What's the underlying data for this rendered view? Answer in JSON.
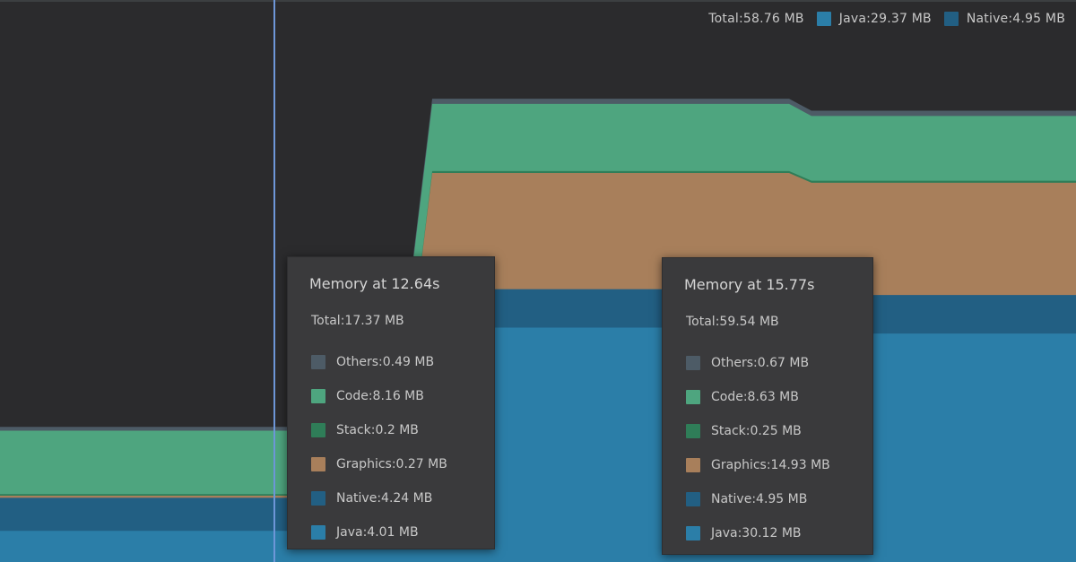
{
  "colors": {
    "background": "#2b2b2d",
    "others": "#4d5b66",
    "code": "#4ea57f",
    "stack": "#2f7d58",
    "graphics": "#a87f5b",
    "native": "#225f83",
    "java": "#2b7ea8",
    "cursor": "#6e97d8"
  },
  "legend": [
    {
      "label": "Total:58.76 MB",
      "icon": "none",
      "color": ""
    },
    {
      "label": "Java:29.37 MB",
      "icon": "square-swatch",
      "color": "#2b7ea8"
    },
    {
      "label": "Native:4.95 MB",
      "icon": "square-swatch",
      "color": "#225f83"
    }
  ],
  "tooltips": [
    {
      "title": "Memory at 12.64s",
      "total": "Total:17.37 MB",
      "rows": [
        {
          "label": "Others:0.49 MB",
          "color": "#4d5b66"
        },
        {
          "label": "Code:8.16 MB",
          "color": "#4ea57f"
        },
        {
          "label": "Stack:0.2 MB",
          "color": "#2f7d58"
        },
        {
          "label": "Graphics:0.27 MB",
          "color": "#a87f5b"
        },
        {
          "label": "Native:4.24 MB",
          "color": "#225f83"
        },
        {
          "label": "Java:4.01 MB",
          "color": "#2b7ea8"
        }
      ]
    },
    {
      "title": "Memory at 15.77s",
      "total": "Total:59.54 MB",
      "rows": [
        {
          "label": "Others:0.67 MB",
          "color": "#4d5b66"
        },
        {
          "label": "Code:8.63 MB",
          "color": "#4ea57f"
        },
        {
          "label": "Stack:0.25 MB",
          "color": "#2f7d58"
        },
        {
          "label": "Graphics:14.93 MB",
          "color": "#a87f5b"
        },
        {
          "label": "Native:4.95 MB",
          "color": "#225f83"
        },
        {
          "label": "Java:30.12 MB",
          "color": "#2b7ea8"
        }
      ]
    }
  ],
  "chart_data": {
    "type": "area",
    "title": "",
    "stacked": true,
    "y_unit": "MB",
    "grid": false,
    "series_order_bottom_to_top": [
      "Java",
      "Native",
      "Graphics",
      "Stack",
      "Code",
      "Others"
    ],
    "snapshots": [
      {
        "time_s": 12.64,
        "total_mb": 17.37,
        "values_mb": {
          "Others": 0.49,
          "Code": 8.16,
          "Stack": 0.2,
          "Graphics": 0.27,
          "Native": 4.24,
          "Java": 4.01
        }
      },
      {
        "time_s": 15.77,
        "total_mb": 59.54,
        "values_mb": {
          "Others": 0.67,
          "Code": 8.63,
          "Stack": 0.25,
          "Graphics": 14.93,
          "Native": 4.95,
          "Java": 30.12
        }
      }
    ],
    "current_mb": {
      "Total": 58.76,
      "Java": 29.37,
      "Native": 4.95
    }
  }
}
